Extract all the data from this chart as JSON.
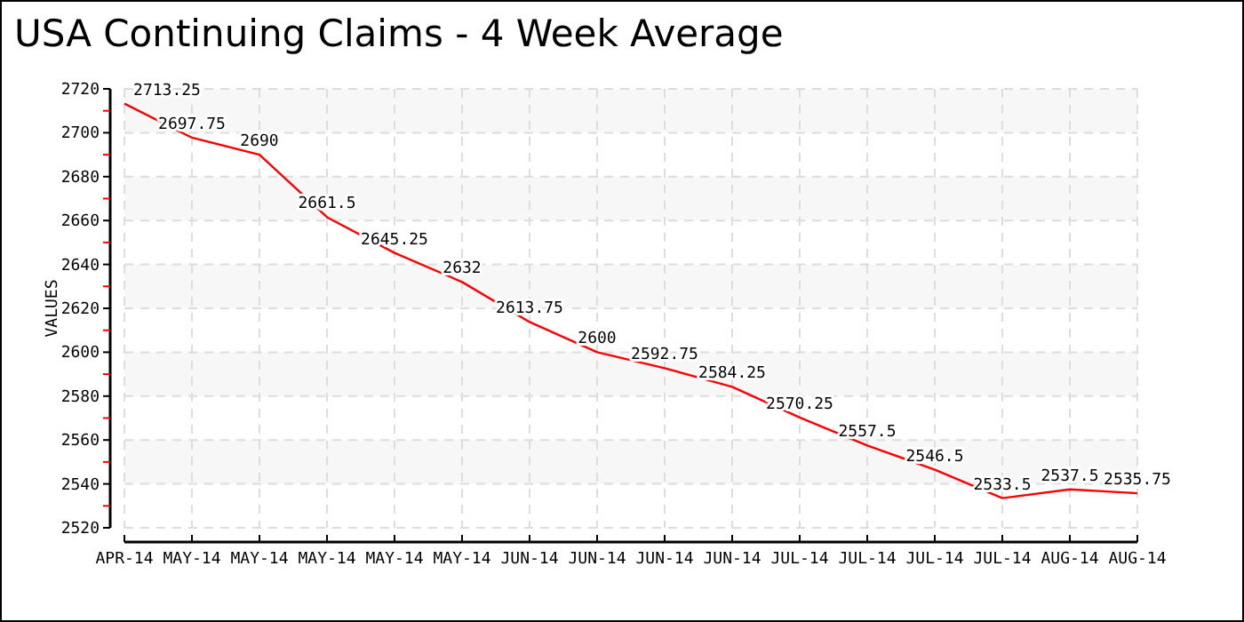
{
  "chart_data": {
    "type": "line",
    "title": "USA Continuing Claims - 4 Week Average",
    "ylabel": "VALUES",
    "categories": [
      "APR-14",
      "MAY-14",
      "MAY-14",
      "MAY-14",
      "MAY-14",
      "MAY-14",
      "JUN-14",
      "JUN-14",
      "JUN-14",
      "JUN-14",
      "JUL-14",
      "JUL-14",
      "JUL-14",
      "JUL-14",
      "AUG-14",
      "AUG-14"
    ],
    "series": [
      {
        "color": "#ff0000",
        "values": [
          2713.25,
          2697.75,
          2690,
          2661.5,
          2645.25,
          2632,
          2613.75,
          2600,
          2592.75,
          2584.25,
          2570.25,
          2557.5,
          2546.5,
          2533.5,
          2537.5,
          2535.75
        ]
      }
    ],
    "ylim": [
      2520,
      2720
    ],
    "yticks": [
      2520,
      2540,
      2560,
      2580,
      2600,
      2620,
      2640,
      2660,
      2680,
      2700,
      2720
    ],
    "grid": true,
    "data_labels": true,
    "marker": "none",
    "line_style": "solid"
  }
}
